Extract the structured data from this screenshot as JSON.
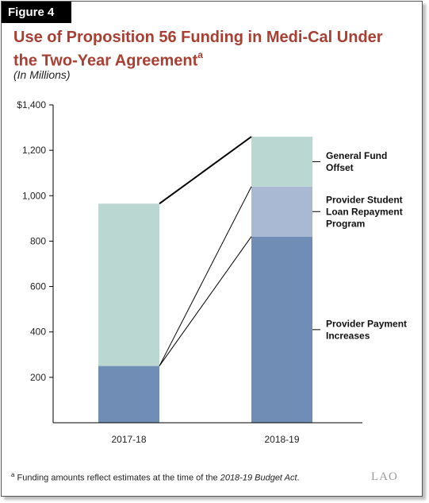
{
  "figure_label": "Figure 4",
  "title": "Use of Proposition 56 Funding in Medi-Cal Under the Two-Year Agreement",
  "title_superscript": "a",
  "subtitle": "(In Millions)",
  "footnote": {
    "marker": "a",
    "text_before": "Funding amounts reflect estimates at the time of the ",
    "italic": "2018-19 Budget Act",
    "text_after": "."
  },
  "logo_text": "LAO",
  "logo_icon": "lao-logo-icon",
  "colors": {
    "provider_payment": "#6f8db5",
    "loan_repayment": "#aab9d3",
    "general_fund": "#bbd7d1",
    "title": "#a93f32"
  },
  "chart_data": {
    "type": "bar",
    "stacked": true,
    "categories": [
      "2017-18",
      "2018-19"
    ],
    "series": [
      {
        "name": "Provider Payment Increases",
        "values": [
          250,
          820
        ],
        "color": "#6f8db5"
      },
      {
        "name": "Provider Student Loan Repayment Program",
        "values": [
          0,
          220
        ],
        "color": "#aab9d3"
      },
      {
        "name": "General Fund Offset",
        "values": [
          715,
          220
        ],
        "color": "#bbd7d1"
      }
    ],
    "ylim": [
      0,
      1400
    ],
    "yticks": [
      200,
      400,
      600,
      800,
      1000,
      1200,
      1400
    ],
    "ytick_labels": [
      "200",
      "400",
      "600",
      "800",
      "1,000",
      "1,200",
      "$1,400"
    ],
    "xlabel": "",
    "ylabel": "",
    "legend": [
      {
        "series": "General Fund Offset",
        "lines": [
          "General Fund",
          "Offset"
        ]
      },
      {
        "series": "Provider Student Loan Repayment Program",
        "lines": [
          "Provider Student",
          "Loan Repayment",
          "Program"
        ]
      },
      {
        "series": "Provider Payment Increases",
        "lines": [
          "Provider Payment",
          "Increases"
        ]
      }
    ],
    "grid": false
  }
}
